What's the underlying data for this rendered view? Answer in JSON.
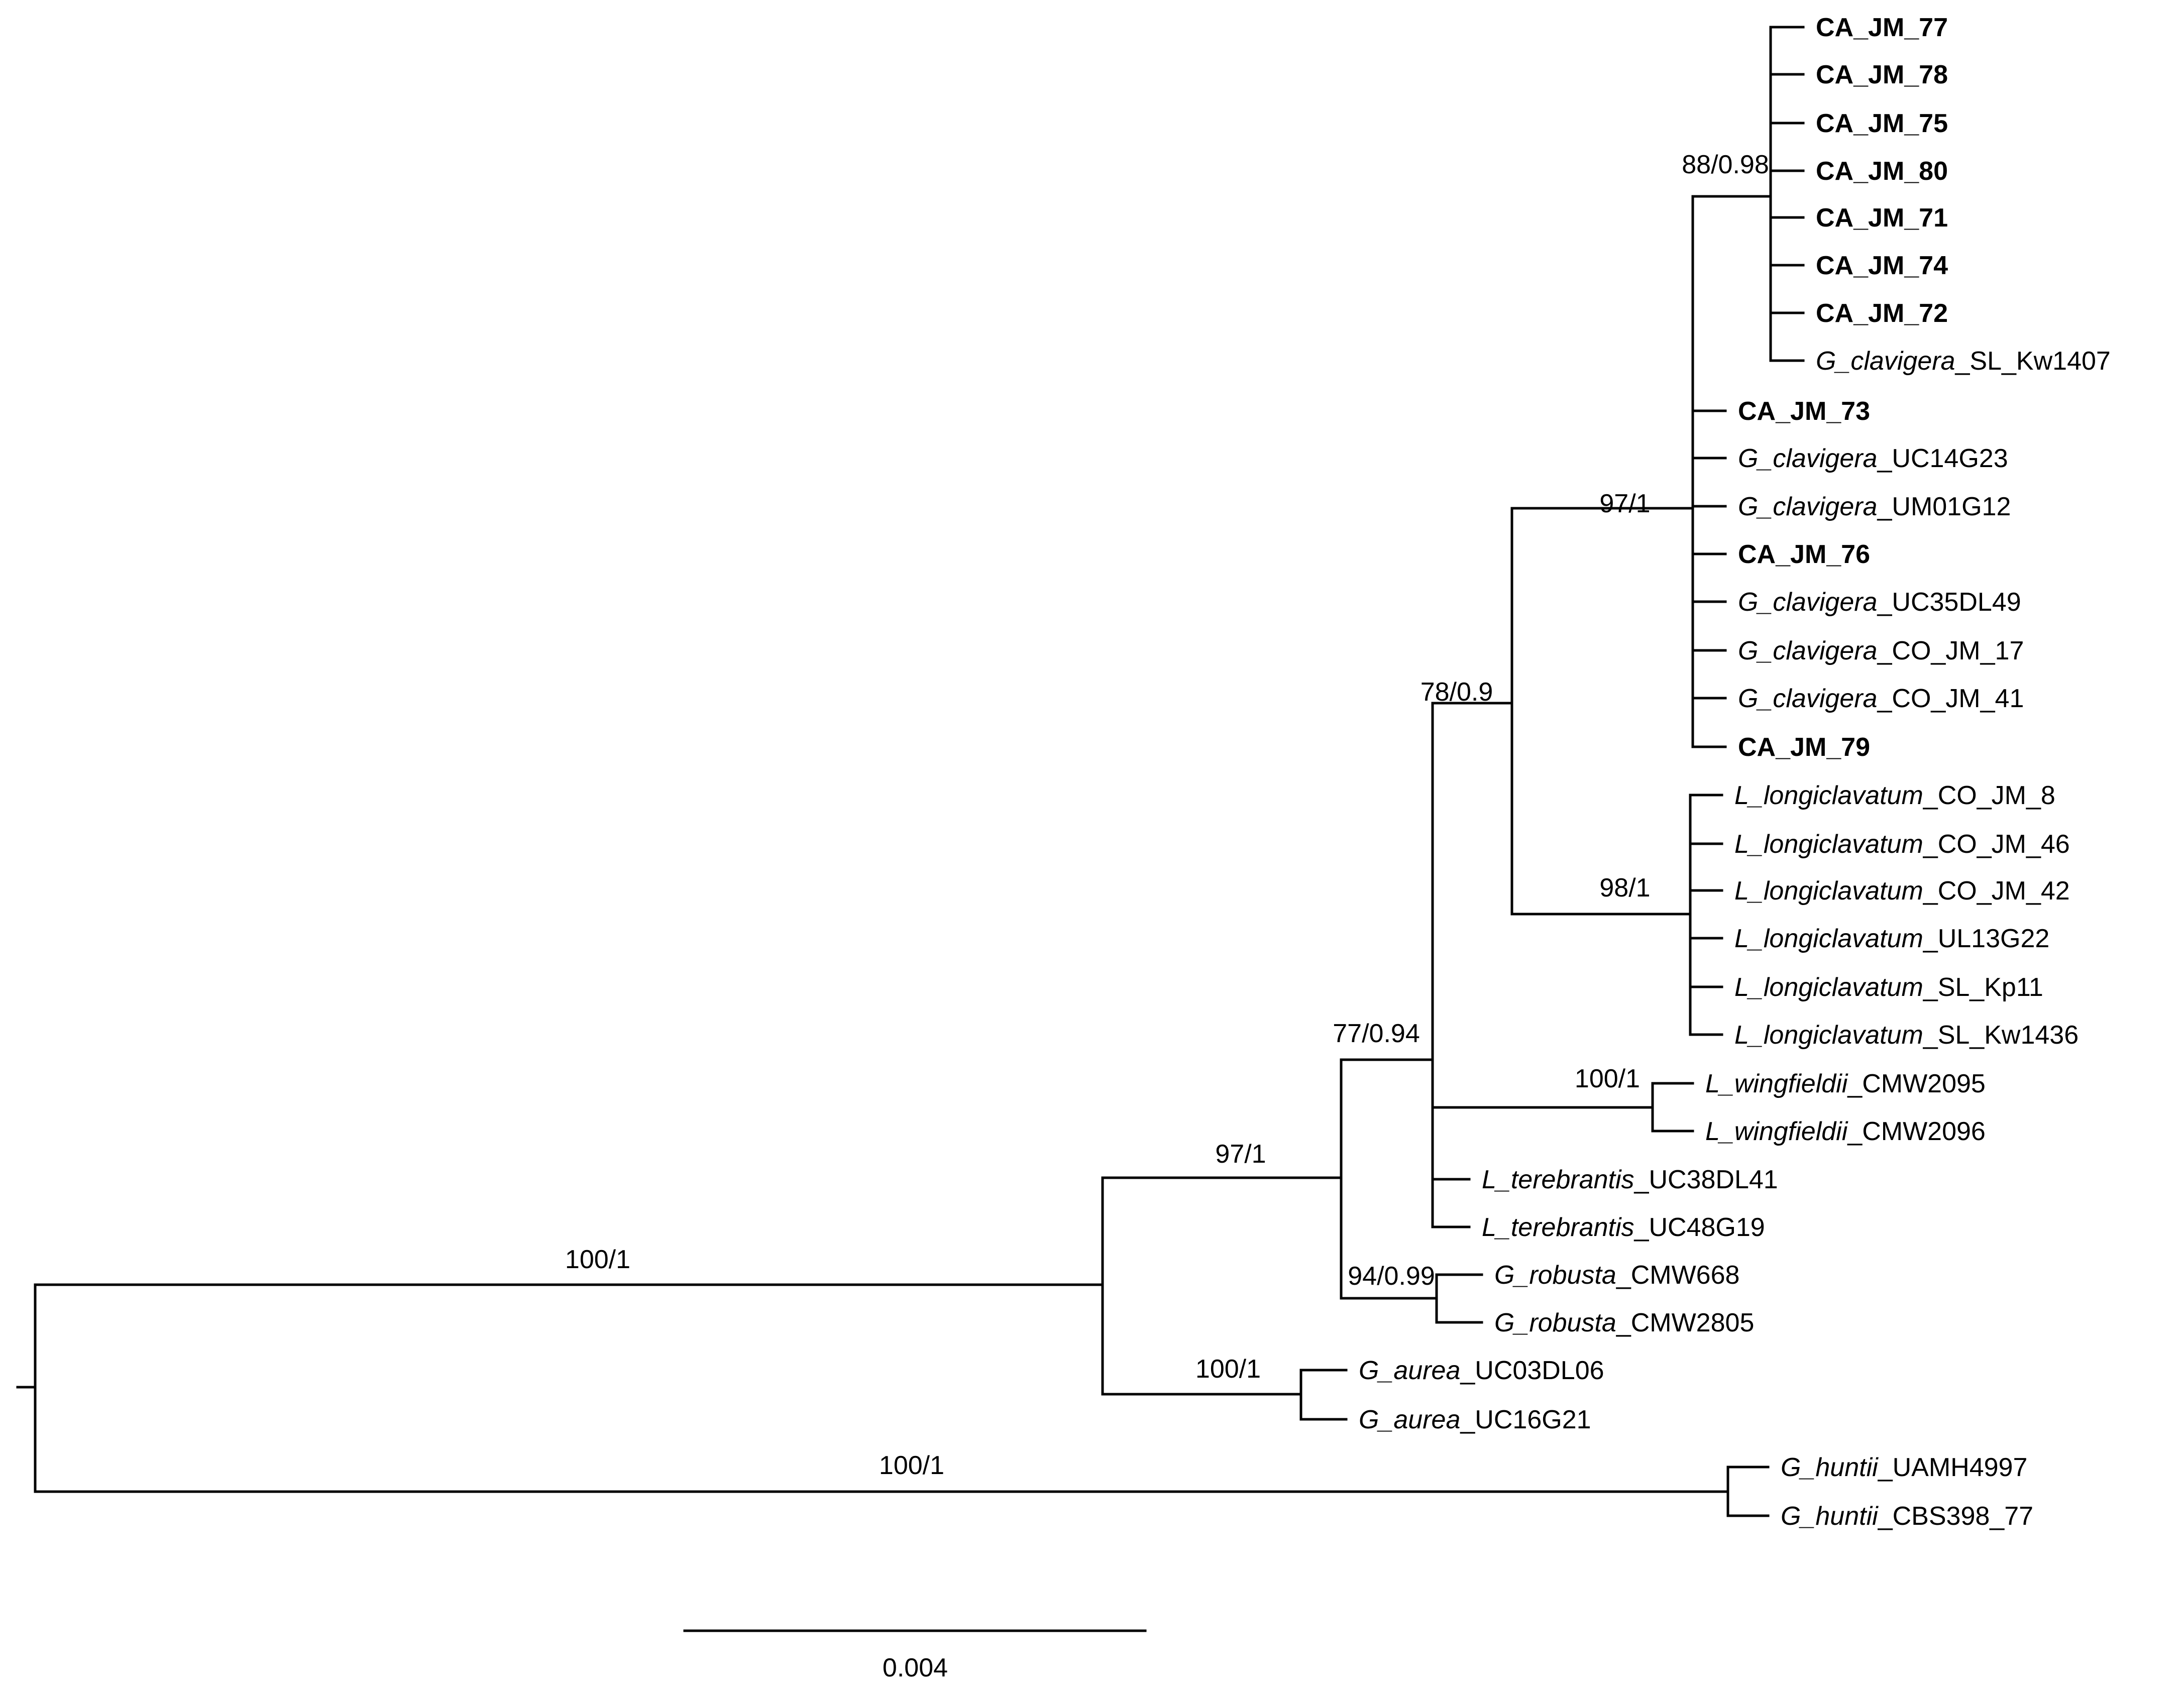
{
  "tree": {
    "tips": [
      {
        "id": "t1",
        "genus": "",
        "species": "",
        "accession": "CA_JM_77",
        "bold": true
      },
      {
        "id": "t2",
        "genus": "",
        "species": "",
        "accession": "CA_JM_78",
        "bold": true
      },
      {
        "id": "t3",
        "genus": "",
        "species": "",
        "accession": "CA_JM_75",
        "bold": true
      },
      {
        "id": "t4",
        "genus": "",
        "species": "",
        "accession": "CA_JM_80",
        "bold": true
      },
      {
        "id": "t5",
        "genus": "",
        "species": "",
        "accession": "CA_JM_71",
        "bold": true
      },
      {
        "id": "t6",
        "genus": "",
        "species": "",
        "accession": "CA_JM_74",
        "bold": true
      },
      {
        "id": "t7",
        "genus": "",
        "species": "",
        "accession": "CA_JM_72",
        "bold": true
      },
      {
        "id": "t8",
        "genus": "G",
        "species": "clavigera",
        "accession": "SL_Kw1407",
        "bold": false
      },
      {
        "id": "t9",
        "genus": "",
        "species": "",
        "accession": "CA_JM_73",
        "bold": true
      },
      {
        "id": "t10",
        "genus": "G",
        "species": "clavigera",
        "accession": "UC14G23",
        "bold": false
      },
      {
        "id": "t11",
        "genus": "G",
        "species": "clavigera",
        "accession": "UM01G12",
        "bold": false
      },
      {
        "id": "t12",
        "genus": "",
        "species": "",
        "accession": "CA_JM_76",
        "bold": true
      },
      {
        "id": "t13",
        "genus": "G",
        "species": "clavigera",
        "accession": "UC35DL49",
        "bold": false
      },
      {
        "id": "t14",
        "genus": "G",
        "species": "clavigera",
        "accession": "CO_JM_17",
        "bold": false
      },
      {
        "id": "t15",
        "genus": "G",
        "species": "clavigera",
        "accession": "CO_JM_41",
        "bold": false
      },
      {
        "id": "t16",
        "genus": "",
        "species": "",
        "accession": "CA_JM_79",
        "bold": true
      },
      {
        "id": "t17",
        "genus": "L",
        "species": "longiclavatum",
        "accession": "CO_JM_8",
        "bold": false
      },
      {
        "id": "t18",
        "genus": "L",
        "species": "longiclavatum",
        "accession": "CO_JM_46",
        "bold": false
      },
      {
        "id": "t19",
        "genus": "L",
        "species": "longiclavatum",
        "accession": "CO_JM_42",
        "bold": false
      },
      {
        "id": "t20",
        "genus": "L",
        "species": "longiclavatum",
        "accession": "UL13G22",
        "bold": false
      },
      {
        "id": "t21",
        "genus": "L",
        "species": "longiclavatum",
        "accession": "SL_Kp11",
        "bold": false
      },
      {
        "id": "t22",
        "genus": "L",
        "species": "longiclavatum",
        "accession": "SL_Kw1436",
        "bold": false
      },
      {
        "id": "t23",
        "genus": "L",
        "species": "wingfieldii",
        "accession": "CMW2095",
        "bold": false
      },
      {
        "id": "t24",
        "genus": "L",
        "species": "wingfieldii",
        "accession": "CMW2096",
        "bold": false
      },
      {
        "id": "t25",
        "genus": "L",
        "species": "terebrantis",
        "accession": "UC38DL41",
        "bold": false
      },
      {
        "id": "t26",
        "genus": "L",
        "species": "terebrantis",
        "accession": "UC48G19",
        "bold": false
      },
      {
        "id": "t27",
        "genus": "G",
        "species": "robusta",
        "accession": "CMW668",
        "bold": false
      },
      {
        "id": "t28",
        "genus": "G",
        "species": "robusta",
        "accession": "CMW2805",
        "bold": false
      },
      {
        "id": "t29",
        "genus": "G",
        "species": "aurea",
        "accession": "UC03DL06",
        "bold": false
      },
      {
        "id": "t30",
        "genus": "G",
        "species": "aurea",
        "accession": "UC16G21",
        "bold": false
      },
      {
        "id": "t31",
        "genus": "G",
        "species": "huntii",
        "accession": "UAMH4997",
        "bold": false
      },
      {
        "id": "t32",
        "genus": "G",
        "species": "huntii",
        "accession": "CBS398_77",
        "bold": false
      }
    ],
    "support_values": [
      {
        "id": "sAu",
        "label": "100/1"
      },
      {
        "id": "sGl",
        "label": "97/1"
      },
      {
        "id": "sS1",
        "label": "77/0.94"
      },
      {
        "id": "sS2",
        "label": "78/0.9"
      },
      {
        "id": "sCla",
        "label": "97/1"
      },
      {
        "id": "sCA",
        "label": "88/0.98"
      },
      {
        "id": "sLon",
        "label": "98/1"
      },
      {
        "id": "sWin",
        "label": "100/1"
      },
      {
        "id": "sRob",
        "label": "94/0.99"
      },
      {
        "id": "sAur",
        "label": "100/1"
      },
      {
        "id": "sHun",
        "label": "100/1"
      }
    ],
    "scale_bar": {
      "label": "0.004",
      "length": 0.004
    }
  }
}
